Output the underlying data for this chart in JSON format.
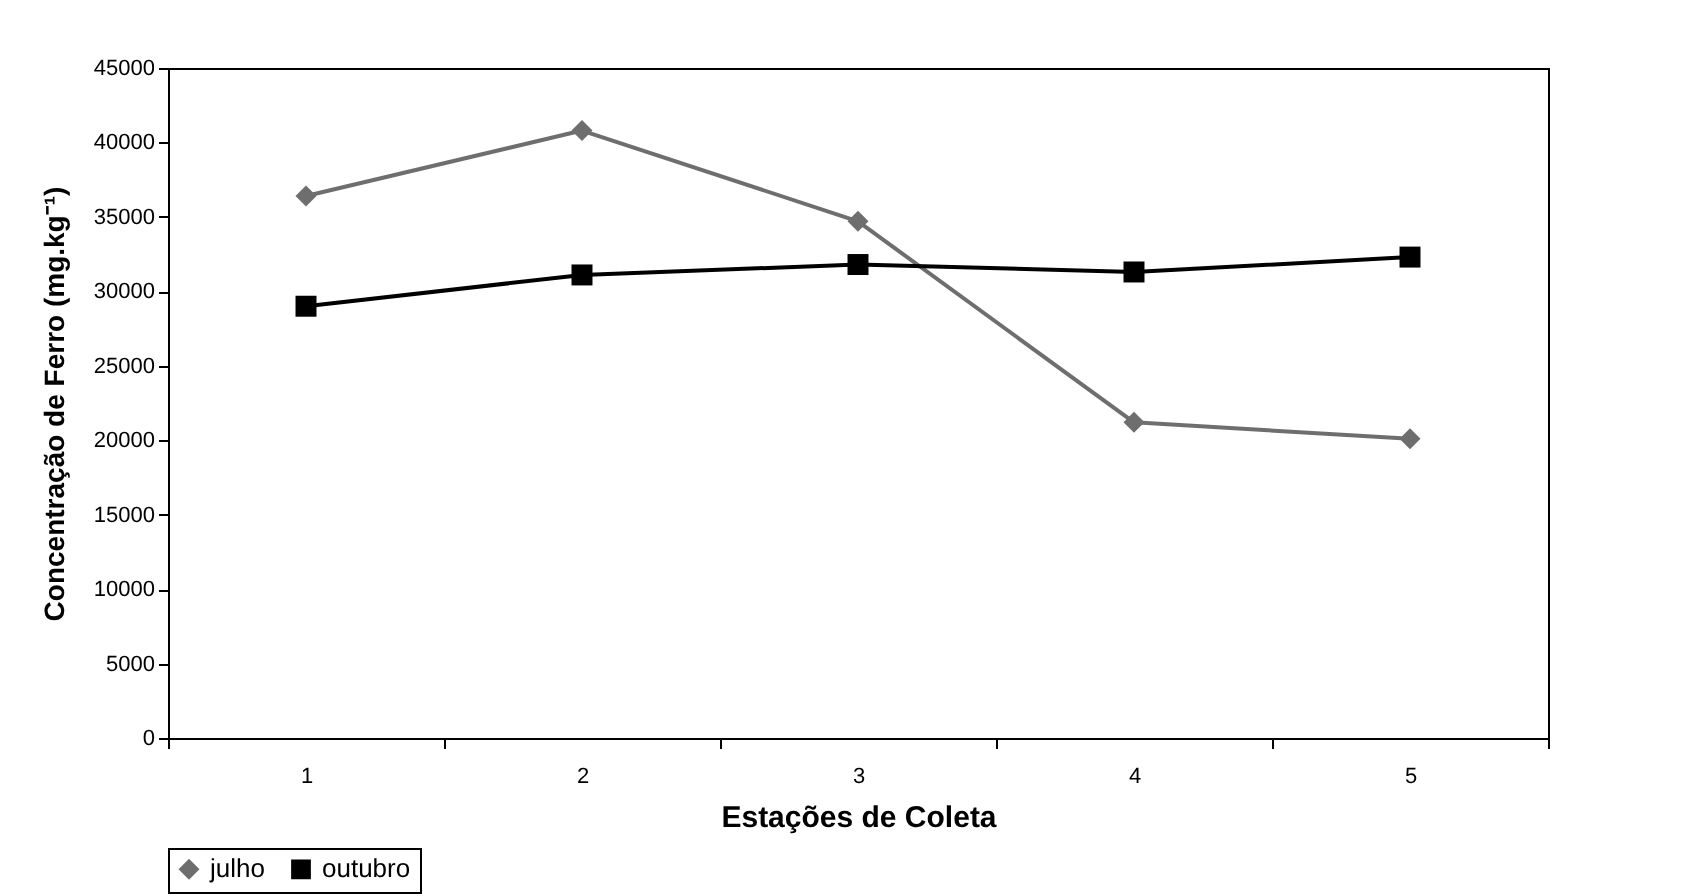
{
  "chart_data": {
    "type": "line",
    "xlabel": "Estações de Coleta",
    "ylabel": "Concentração de Ferro (mg.kg⁻¹)",
    "categories": [
      "1",
      "2",
      "3",
      "4",
      "5"
    ],
    "series": [
      {
        "name": "julho",
        "color": "#6e6e6e",
        "marker": "diamond",
        "values": [
          36400,
          40800,
          34700,
          21200,
          20100
        ]
      },
      {
        "name": "outubro",
        "color": "#000000",
        "marker": "square",
        "values": [
          29000,
          31100,
          31800,
          31300,
          32300
        ]
      }
    ],
    "ylim": [
      0,
      45000
    ],
    "yticks": [
      0,
      5000,
      10000,
      15000,
      20000,
      25000,
      30000,
      35000,
      40000,
      45000
    ],
    "legend": "bottom left"
  }
}
